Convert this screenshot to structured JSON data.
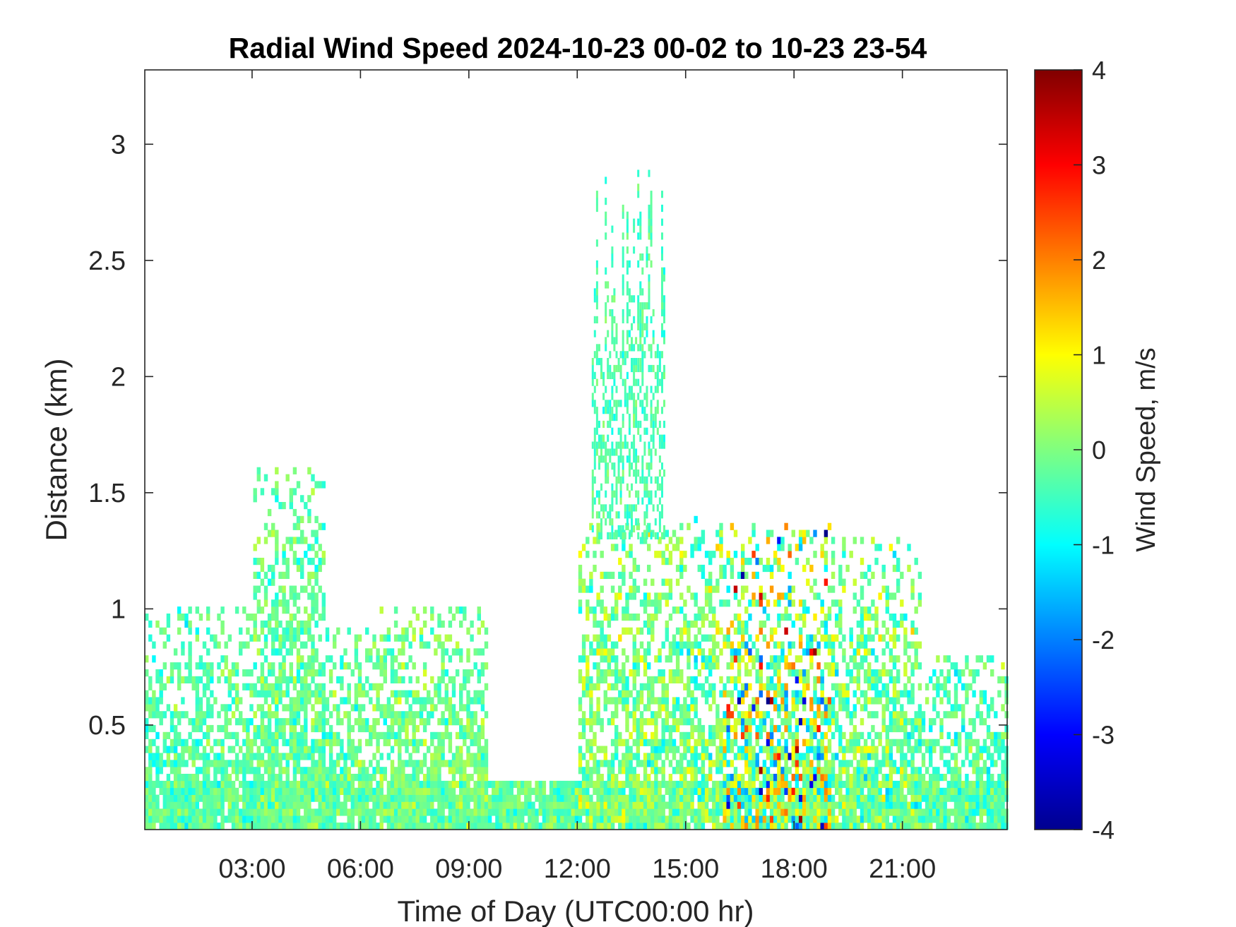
{
  "chart_data": {
    "type": "heatmap",
    "title": "Radial Wind Speed 2024-10-23 00-02 to 10-23 23-54",
    "xlabel": "Time of Day (UTC00:00 hr)",
    "ylabel": "Distance (km)",
    "colorbar_label": "Wind Speed, m/s",
    "colormap": "jet",
    "xlim_hours": [
      0.03,
      23.9
    ],
    "ylim_km": [
      0.05,
      3.32
    ],
    "clim": [
      -4,
      4
    ],
    "x_ticks": [
      {
        "hours": 3,
        "label": "03:00"
      },
      {
        "hours": 6,
        "label": "06:00"
      },
      {
        "hours": 9,
        "label": "09:00"
      },
      {
        "hours": 12,
        "label": "12:00"
      },
      {
        "hours": 15,
        "label": "15:00"
      },
      {
        "hours": 18,
        "label": "18:00"
      },
      {
        "hours": 21,
        "label": "21:00"
      }
    ],
    "y_ticks": [
      {
        "km": 0.5,
        "label": "0.5"
      },
      {
        "km": 1,
        "label": "1"
      },
      {
        "km": 1.5,
        "label": "1.5"
      },
      {
        "km": 2,
        "label": "2"
      },
      {
        "km": 2.5,
        "label": "2.5"
      },
      {
        "km": 3,
        "label": "3"
      }
    ],
    "colorbar_ticks": [
      {
        "value": 4,
        "label": "4"
      },
      {
        "value": 3,
        "label": "3"
      },
      {
        "value": 2,
        "label": "2"
      },
      {
        "value": 1,
        "label": "1"
      },
      {
        "value": 0,
        "label": "0"
      },
      {
        "value": -1,
        "label": "-1"
      },
      {
        "value": -2,
        "label": "-2"
      },
      {
        "value": -3,
        "label": "-3"
      },
      {
        "value": -4,
        "label": "-4"
      }
    ],
    "data_extent": [
      {
        "time_start_hours": 0.03,
        "time_end_hours": 3.0,
        "top_km": 1.0,
        "mean_ms": -0.3,
        "spread_ms": 0.6
      },
      {
        "time_start_hours": 3.0,
        "time_end_hours": 5.0,
        "top_km": 1.6,
        "mean_ms": -0.2,
        "spread_ms": 0.6
      },
      {
        "time_start_hours": 5.0,
        "time_end_hours": 6.5,
        "top_km": 0.9,
        "mean_ms": -0.2,
        "spread_ms": 0.6
      },
      {
        "time_start_hours": 6.5,
        "time_end_hours": 9.5,
        "top_km": 1.0,
        "mean_ms": -0.1,
        "spread_ms": 0.6
      },
      {
        "time_start_hours": 9.5,
        "time_end_hours": 12.0,
        "top_km": 0.25,
        "mean_ms": -0.2,
        "spread_ms": 0.6
      },
      {
        "time_start_hours": 12.0,
        "time_end_hours": 15.0,
        "top_km": 1.35,
        "mean_ms": 0.0,
        "spread_ms": 0.8
      },
      {
        "time_start_hours": 15.0,
        "time_end_hours": 16.0,
        "top_km": 1.4,
        "mean_ms": 0.0,
        "spread_ms": 1.0
      },
      {
        "time_start_hours": 16.0,
        "time_end_hours": 19.0,
        "top_km": 1.35,
        "mean_ms": 0.1,
        "spread_ms": 1.8
      },
      {
        "time_start_hours": 19.0,
        "time_end_hours": 21.5,
        "top_km": 1.3,
        "mean_ms": -0.1,
        "spread_ms": 0.9
      },
      {
        "time_start_hours": 21.5,
        "time_end_hours": 23.9,
        "top_km": 0.8,
        "mean_ms": -0.3,
        "spread_ms": 0.7
      }
    ],
    "plume_13_15h": {
      "time_start_hours": 12.4,
      "time_end_hours": 14.4,
      "top_km": 2.9,
      "mean_ms": -0.4
    }
  }
}
